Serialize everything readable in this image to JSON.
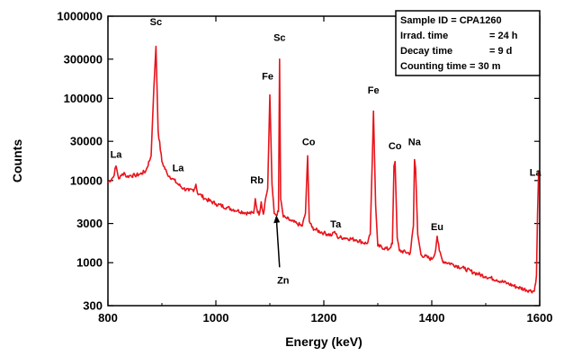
{
  "chart_data": {
    "type": "line",
    "xlabel": "Energy (keV)",
    "ylabel": "Counts",
    "xlim": [
      800,
      1600
    ],
    "ylim": [
      300,
      1000000
    ],
    "yscale": "log",
    "x_ticks": [
      800,
      1000,
      1200,
      1400,
      1600
    ],
    "x_tick_labels": [
      "800",
      "1000",
      "1200",
      "1400",
      "1600"
    ],
    "y_ticks": [
      300,
      1000,
      3000,
      10000,
      30000,
      100000,
      300000,
      1000000
    ],
    "y_tick_labels": [
      "300",
      "1000",
      "3000",
      "10000",
      "30000",
      "100000",
      "300000",
      "1000000"
    ],
    "line_color": "#e8141b",
    "grid": false,
    "series": [
      {
        "x": [
          800,
          810,
          815,
          820,
          825,
          830,
          835,
          840,
          850,
          860,
          870,
          880,
          885,
          889,
          893,
          900,
          910,
          920,
          930,
          940,
          950,
          960,
          963,
          966,
          970,
          980,
          1000,
          1020,
          1040,
          1060,
          1070,
          1073,
          1076,
          1080,
          1084,
          1088,
          1092,
          1096,
          1100,
          1104,
          1108,
          1112,
          1116,
          1118,
          1120,
          1125,
          1130,
          1140,
          1150,
          1160,
          1166,
          1170,
          1173,
          1178,
          1185,
          1200,
          1215,
          1220,
          1225,
          1240,
          1260,
          1280,
          1286,
          1290,
          1292,
          1296,
          1300,
          1320,
          1327,
          1330,
          1332,
          1336,
          1340,
          1360,
          1366,
          1368,
          1370,
          1374,
          1380,
          1400,
          1406,
          1410,
          1414,
          1420,
          1440,
          1460,
          1480,
          1500,
          1520,
          1540,
          1560,
          1580,
          1590,
          1594,
          1596,
          1598,
          1600
        ],
        "y": [
          9500,
          11000,
          15000,
          10500,
          11500,
          12500,
          11000,
          11500,
          11500,
          12000,
          13000,
          20000,
          130000,
          430000,
          40000,
          17000,
          12000,
          10500,
          9000,
          8000,
          7500,
          7800,
          9000,
          7000,
          6800,
          6000,
          5200,
          4700,
          4300,
          4000,
          4000,
          6000,
          4500,
          3800,
          5500,
          3900,
          6000,
          8000,
          110000,
          9000,
          4000,
          3800,
          4200,
          300000,
          6000,
          3600,
          3500,
          3200,
          3000,
          2800,
          4000,
          20000,
          3200,
          2700,
          2500,
          2300,
          2150,
          2400,
          2050,
          2000,
          1900,
          1700,
          2200,
          20000,
          70000,
          5000,
          1600,
          1450,
          1700,
          15000,
          17000,
          2000,
          1400,
          1300,
          2800,
          18000,
          14000,
          2200,
          1250,
          1100,
          1300,
          2100,
          1400,
          1050,
          950,
          850,
          750,
          680,
          620,
          560,
          500,
          460,
          450,
          700,
          4000,
          13000,
          13000
        ]
      }
    ],
    "annotations": [
      {
        "text": "La",
        "x": 815,
        "y": 19000
      },
      {
        "text": "Sc",
        "x": 889,
        "y": 780000
      },
      {
        "text": "La",
        "x": 930,
        "y": 13000
      },
      {
        "text": "Rb",
        "x": 1076,
        "y": 9200
      },
      {
        "text": "Fe",
        "x": 1096,
        "y": 170000
      },
      {
        "text": "Sc",
        "x": 1118,
        "y": 500000
      },
      {
        "text": "Co",
        "x": 1172,
        "y": 27000
      },
      {
        "text": "Ta",
        "x": 1222,
        "y": 2700
      },
      {
        "text": "Fe",
        "x": 1292,
        "y": 115000
      },
      {
        "text": "Co",
        "x": 1332,
        "y": 24000
      },
      {
        "text": "Na",
        "x": 1368,
        "y": 27000
      },
      {
        "text": "Eu",
        "x": 1410,
        "y": 2500
      },
      {
        "text": "La",
        "x": 1592,
        "y": 11500
      }
    ],
    "callout": {
      "text": "Zn",
      "x": 1112,
      "y": 3800,
      "label_x": 1118,
      "label_y": 650
    }
  },
  "info_box": {
    "lines": [
      {
        "label": "Sample ID = CPA1260",
        "value": ""
      },
      {
        "label": "Irrad. time",
        "value": "= 24 h"
      },
      {
        "label": "Decay time",
        "value": "=   9 d"
      },
      {
        "label": "Counting time = 30 m",
        "value": ""
      }
    ]
  }
}
